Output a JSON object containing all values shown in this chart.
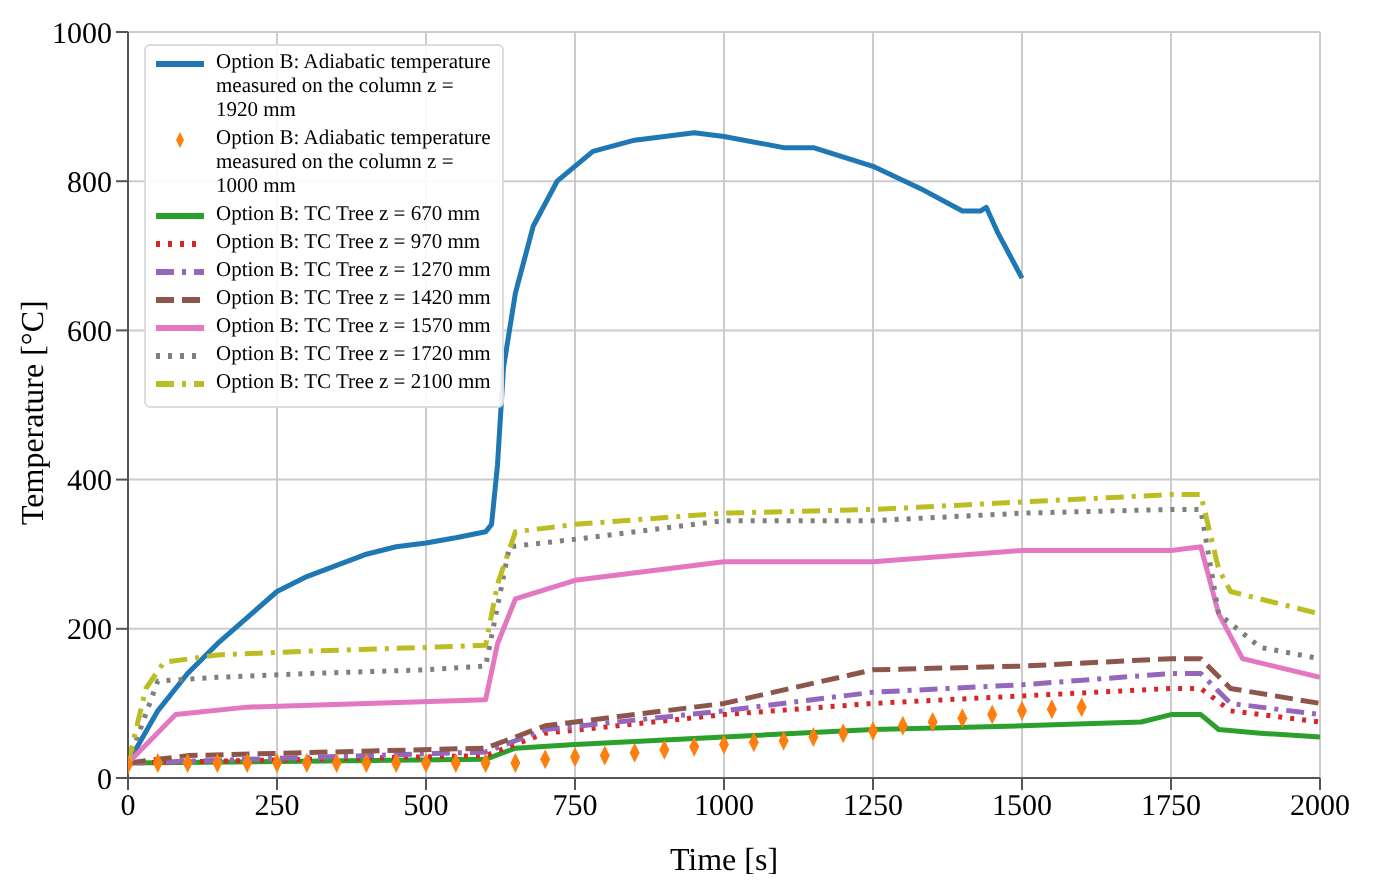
{
  "chart_data": {
    "type": "line",
    "xlabel": "Time [s]",
    "ylabel": "Temperature [°C]",
    "xlim": [
      0,
      2000
    ],
    "xticks": [
      0,
      250,
      500,
      750,
      1000,
      1250,
      1500,
      1750,
      2000
    ],
    "ylim": [
      0,
      1000
    ],
    "yticks": [
      0,
      200,
      400,
      600,
      800,
      1000
    ],
    "grid": true,
    "legend": "top left",
    "series": [
      {
        "name": "Option B: Adiabatic temperature measured on the column z = 1920 mm",
        "color": "#1f77b4",
        "line_style": "solid",
        "x": [
          0,
          50,
          100,
          150,
          200,
          250,
          300,
          350,
          400,
          450,
          500,
          550,
          600,
          610,
          620,
          630,
          650,
          680,
          720,
          780,
          850,
          950,
          1000,
          1100,
          1150,
          1250,
          1330,
          1400,
          1430,
          1440,
          1460,
          1480,
          1500
        ],
        "values": [
          20,
          90,
          140,
          180,
          215,
          250,
          270,
          285,
          300,
          310,
          315,
          322,
          330,
          340,
          420,
          550,
          650,
          740,
          800,
          840,
          855,
          865,
          860,
          845,
          845,
          820,
          790,
          760,
          760,
          765,
          730,
          700,
          670
        ]
      },
      {
        "name": "Option B: Adiabatic temperature measured on the column z = 1000 mm",
        "color": "#ff7f0e",
        "type": "scatter",
        "marker": "diamond",
        "x": [
          0,
          50,
          100,
          150,
          200,
          250,
          300,
          350,
          400,
          450,
          500,
          550,
          600,
          650,
          700,
          750,
          800,
          850,
          900,
          950,
          1000,
          1050,
          1100,
          1150,
          1200,
          1250,
          1300,
          1350,
          1400,
          1450,
          1500,
          1550,
          1600
        ],
        "values": [
          18,
          20,
          20,
          20,
          20,
          20,
          20,
          20,
          20,
          20,
          20,
          20,
          20,
          20,
          25,
          28,
          30,
          34,
          38,
          42,
          45,
          48,
          50,
          55,
          60,
          63,
          70,
          75,
          80,
          85,
          90,
          92,
          95
        ]
      },
      {
        "name": "Option B: TC Tree z = 670 mm",
        "color": "#2ca02c",
        "line_style": "solid",
        "x": [
          0,
          600,
          650,
          750,
          1000,
          1250,
          1500,
          1700,
          1750,
          1800,
          1830,
          1900,
          2000
        ],
        "values": [
          20,
          25,
          40,
          45,
          55,
          65,
          70,
          75,
          85,
          85,
          65,
          60,
          55
        ]
      },
      {
        "name": "Option B: TC Tree z = 970 mm",
        "color": "#d62728",
        "line_style": "dotted",
        "x": [
          0,
          600,
          700,
          1000,
          1250,
          1500,
          1750,
          1800,
          1850,
          2000
        ],
        "values": [
          20,
          30,
          60,
          85,
          100,
          110,
          120,
          120,
          90,
          75
        ]
      },
      {
        "name": "Option B: TC Tree z = 1270 mm",
        "color": "#9467bd",
        "line_style": "dashdot",
        "x": [
          0,
          600,
          700,
          1000,
          1250,
          1500,
          1750,
          1800,
          1850,
          2000
        ],
        "values": [
          20,
          35,
          65,
          90,
          115,
          125,
          140,
          140,
          100,
          85
        ]
      },
      {
        "name": "Option B: TC Tree z = 1420 mm",
        "color": "#8c564b",
        "line_style": "dashed",
        "x": [
          0,
          100,
          600,
          700,
          1000,
          1250,
          1500,
          1750,
          1800,
          1850,
          2000
        ],
        "values": [
          20,
          30,
          40,
          70,
          100,
          145,
          150,
          160,
          160,
          120,
          100
        ]
      },
      {
        "name": "Option B: TC Tree z = 1570 mm",
        "color": "#e377c2",
        "line_style": "solid",
        "x": [
          0,
          80,
          200,
          400,
          600,
          620,
          650,
          750,
          1000,
          1250,
          1500,
          1750,
          1800,
          1830,
          1870,
          2000
        ],
        "values": [
          20,
          85,
          95,
          100,
          105,
          180,
          240,
          265,
          290,
          290,
          305,
          305,
          310,
          220,
          160,
          135
        ]
      },
      {
        "name": "Option B: TC Tree z = 1720 mm",
        "color": "#7f7f7f",
        "line_style": "dotted",
        "x": [
          0,
          50,
          150,
          300,
          500,
          600,
          640,
          750,
          1000,
          1250,
          1500,
          1750,
          1800,
          1830,
          1900,
          2000
        ],
        "values": [
          20,
          130,
          135,
          140,
          145,
          150,
          310,
          320,
          345,
          345,
          355,
          360,
          360,
          220,
          175,
          160
        ]
      },
      {
        "name": "Option B: TC Tree z = 2100 mm",
        "color": "#bcbd22",
        "line_style": "dashdot",
        "x": [
          0,
          30,
          60,
          150,
          300,
          500,
          600,
          620,
          650,
          750,
          1000,
          1250,
          1500,
          1750,
          1800,
          1830,
          1850,
          2000
        ],
        "values": [
          20,
          120,
          155,
          165,
          170,
          175,
          178,
          260,
          330,
          340,
          355,
          360,
          370,
          380,
          380,
          280,
          250,
          220
        ]
      }
    ]
  }
}
